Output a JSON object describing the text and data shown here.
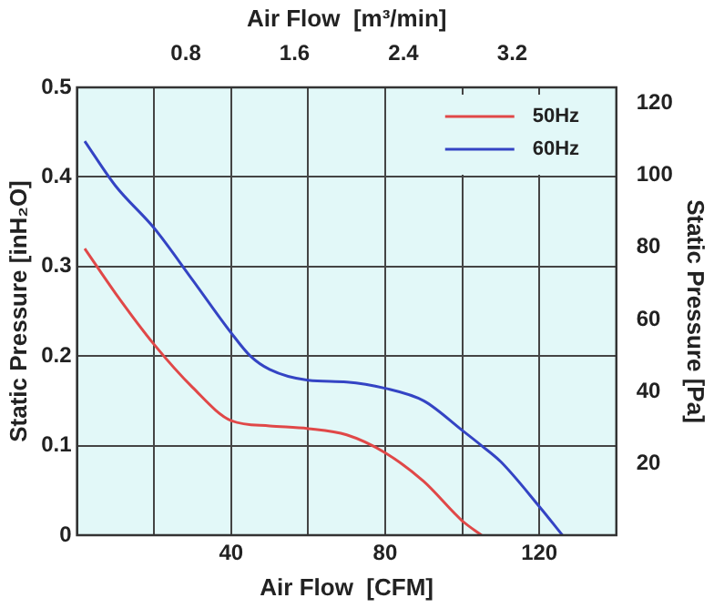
{
  "chart_data": {
    "type": "line",
    "xlabel": "Air Flow  [CFM]",
    "ylabel": "Static Pressure [inH₂O]",
    "y2label": "Static Pressure [Pa]",
    "x2label": "Air Flow  [m³/min]",
    "xlim": [
      0,
      140
    ],
    "xticks": [
      {
        "value": 20,
        "label": null
      },
      40,
      {
        "value": 60,
        "label": null
      },
      80,
      {
        "value": 100,
        "label": null
      },
      120
    ],
    "ylim": [
      0,
      0.5
    ],
    "yticks": [
      0,
      0.1,
      0.2,
      0.3,
      0.4,
      0.5
    ],
    "y2lim": [
      0,
      124.5
    ],
    "y2ticks": [
      20,
      40,
      60,
      80,
      100,
      120
    ],
    "x2lim": [
      0,
      3.965
    ],
    "x2ticks": [
      0.8,
      1.6,
      2.4,
      3.2
    ],
    "grid": true,
    "legend": "top right",
    "marker": "none",
    "line_style": "solid",
    "series": [
      {
        "name": "50Hz",
        "color": "#e04848",
        "x": [
          2,
          10,
          20,
          30,
          40,
          50,
          60,
          70,
          80,
          90,
          100,
          105
        ],
        "values": [
          0.32,
          0.27,
          0.213,
          0.165,
          0.128,
          0.122,
          0.119,
          0.112,
          0.092,
          0.06,
          0.016,
          0
        ]
      },
      {
        "name": "60Hz",
        "color": "#3444c4",
        "x": [
          2,
          10,
          20,
          30,
          40,
          45,
          50,
          60,
          70,
          80,
          90,
          100,
          105,
          110,
          120,
          126
        ],
        "values": [
          0.44,
          0.39,
          0.343,
          0.285,
          0.226,
          0.2,
          0.185,
          0.173,
          0.171,
          0.164,
          0.15,
          0.117,
          0.1,
          0.082,
          0.032,
          0
        ]
      }
    ]
  }
}
